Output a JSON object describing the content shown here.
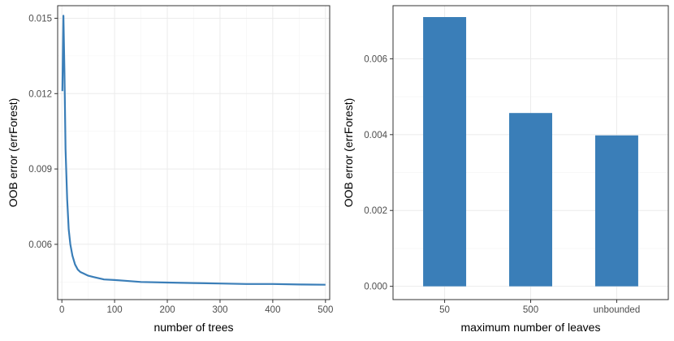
{
  "chart_data": [
    {
      "type": "line",
      "xlabel": "number of trees",
      "ylabel": "OOB error (errForest)",
      "xlim": [
        -8,
        508
      ],
      "ylim": [
        0.0038,
        0.0155
      ],
      "x_ticks": [
        0,
        100,
        200,
        300,
        400,
        500
      ],
      "y_ticks": [
        0.006,
        0.009,
        0.012,
        0.015
      ],
      "y_tick_labels": [
        "0.006",
        "0.009",
        "0.012",
        "0.015"
      ],
      "grid": true,
      "series": [
        {
          "color": "#3a7eb8",
          "x": [
            1,
            3,
            5,
            7,
            10,
            13,
            16,
            20,
            25,
            30,
            35,
            40,
            50,
            60,
            70,
            80,
            100,
            120,
            150,
            200,
            250,
            300,
            350,
            400,
            450,
            500
          ],
          "y": [
            0.0121,
            0.0151,
            0.0128,
            0.0098,
            0.0078,
            0.0066,
            0.006,
            0.00555,
            0.0052,
            0.005,
            0.0049,
            0.00485,
            0.00475,
            0.0047,
            0.00465,
            0.0046,
            0.00458,
            0.00455,
            0.0045,
            0.00448,
            0.00446,
            0.00444,
            0.00442,
            0.00442,
            0.0044,
            0.00439
          ]
        }
      ]
    },
    {
      "type": "bar",
      "xlabel": "maximum number of leaves",
      "ylabel": "OOB error (errForest)",
      "categories": [
        "50",
        "500",
        "unbounded"
      ],
      "values": [
        0.0071,
        0.00457,
        0.00398
      ],
      "ylim": [
        -0.00035,
        0.0074
      ],
      "y_ticks": [
        0.0,
        0.002,
        0.004,
        0.006
      ],
      "y_tick_labels": [
        "0.000",
        "0.002",
        "0.004",
        "0.006"
      ],
      "grid": true,
      "bar_color": "#3a7eb8"
    }
  ]
}
